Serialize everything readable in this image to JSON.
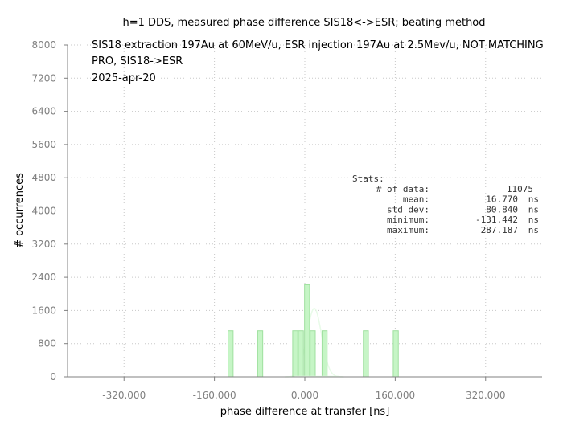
{
  "chart_data": {
    "type": "bar",
    "title": "h=1 DDS, measured phase difference SIS18<->ESR; beating method",
    "xlabel": "phase difference at transfer [ns]",
    "ylabel": "# occurrences",
    "xlim": [
      -420,
      420
    ],
    "ylim": [
      0,
      8000
    ],
    "xticks": [
      -320,
      -160,
      0,
      160,
      320
    ],
    "xtick_labels": [
      "-320.000",
      "-160.000",
      "0.000",
      "160.000",
      "320.000"
    ],
    "yticks": [
      0,
      800,
      1600,
      2400,
      3200,
      4000,
      4800,
      5600,
      6400,
      7200,
      8000
    ],
    "ytick_labels": [
      "0",
      "800",
      "1600",
      "2400",
      "3200",
      "4000",
      "4800",
      "5600",
      "6400",
      "7200",
      "8000"
    ],
    "grid": true,
    "bar_color": "#c6f5c6",
    "bar_edge_color": "#9fe09f",
    "curve_color": "#e8fbe8",
    "bars": [
      {
        "x": -131.4,
        "value": 1110
      },
      {
        "x": -79,
        "value": 1110
      },
      {
        "x": -17,
        "value": 1110
      },
      {
        "x": -7,
        "value": 1110
      },
      {
        "x": 4,
        "value": 2220
      },
      {
        "x": 14,
        "value": 1110
      },
      {
        "x": 35,
        "value": 1110
      },
      {
        "x": 108,
        "value": 1110
      },
      {
        "x": 161,
        "value": 1110
      }
    ],
    "bar_width": 9,
    "curve": {
      "mean": 16.77,
      "sigma": 13,
      "peak": 1650
    },
    "annotations": [
      "SIS18 extraction 197Au at 60MeV/u, ESR injection 197Au at 2.5Mev/u, NOT MATCHING",
      "PRO, SIS18->ESR",
      "2025-apr-20"
    ],
    "stats": {
      "heading": "Stats:",
      "rows": [
        {
          "label": "# of data:",
          "value": "11075",
          "unit": ""
        },
        {
          "label": "mean:",
          "value": "16.770",
          "unit": "ns"
        },
        {
          "label": "std dev:",
          "value": "80.840",
          "unit": "ns"
        },
        {
          "label": "minimum:",
          "value": "-131.442",
          "unit": "ns"
        },
        {
          "label": "maximum:",
          "value": "287.187",
          "unit": "ns"
        }
      ]
    }
  }
}
